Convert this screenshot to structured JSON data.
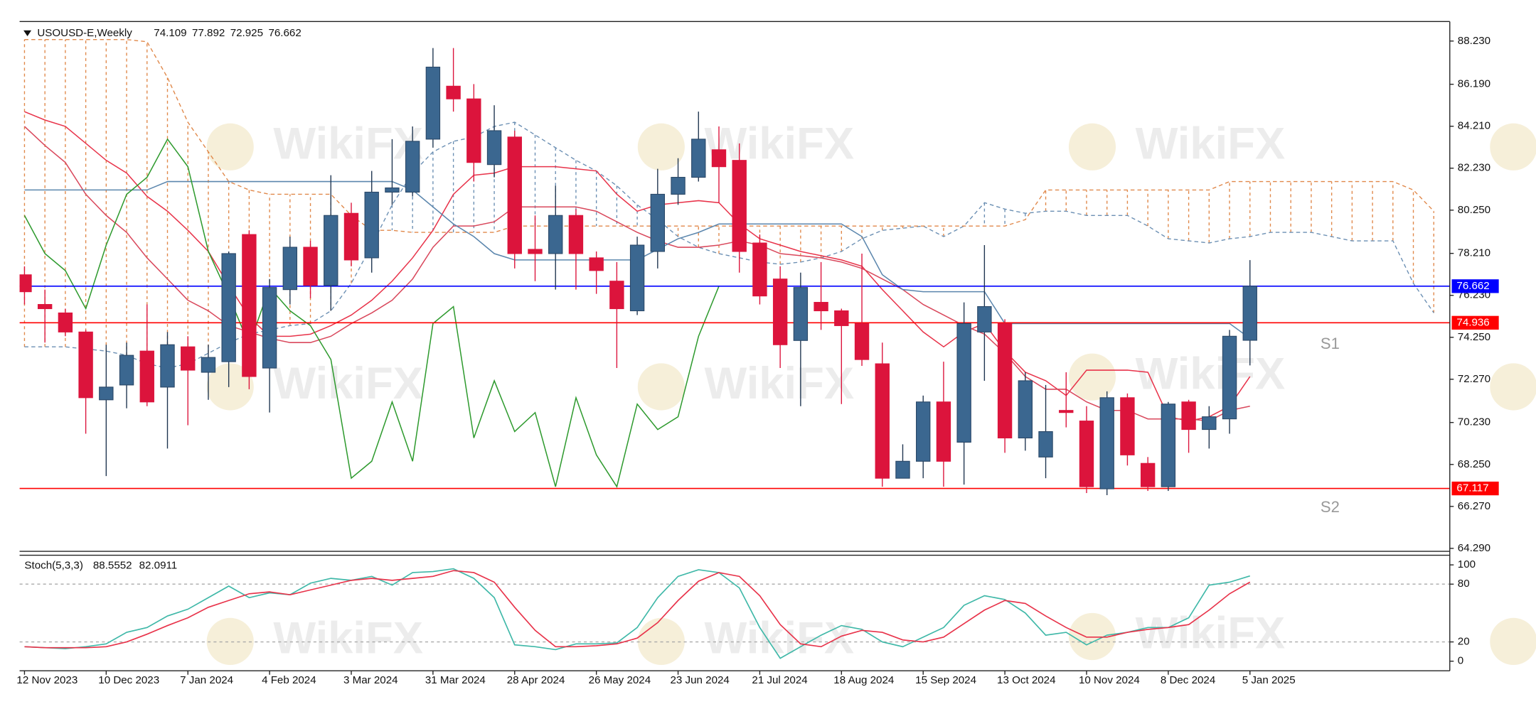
{
  "chart_data": [
    {
      "type": "candlestick",
      "title": "USOUSD-E,Weekly",
      "categories": [
        "12 Nov 2023",
        null,
        null,
        null,
        "10 Dec 2023",
        null,
        null,
        null,
        "7 Jan 2024",
        null,
        null,
        null,
        "4 Feb 2024",
        null,
        null,
        null,
        "3 Mar 2024",
        null,
        null,
        null,
        "31 Mar 2024",
        null,
        null,
        null,
        "28 Apr 2024",
        null,
        null,
        null,
        "26 May 2024",
        null,
        null,
        null,
        "23 Jun 2024",
        null,
        null,
        null,
        "21 Jul 2024",
        null,
        null,
        null,
        "18 Aug 2024",
        null,
        null,
        null,
        "15 Sep 2024",
        null,
        null,
        null,
        "13 Oct 2024",
        null,
        null,
        null,
        "10 Nov 2024",
        null,
        null,
        null,
        "8 Dec 2024",
        null,
        null,
        null,
        "5 Jan 2025",
        null,
        null,
        null,
        null,
        null,
        null,
        null,
        null,
        null
      ],
      "open": [
        77.2,
        75.8,
        75.4,
        74.5,
        71.3,
        72.0,
        73.6,
        71.9,
        73.8,
        72.6,
        73.1,
        79.1,
        72.8,
        76.5,
        78.5,
        76.7,
        80.1,
        78.0,
        81.1,
        81.1,
        83.6,
        86.1,
        85.5,
        82.4,
        83.7,
        78.4,
        78.2,
        80.0,
        78.0,
        76.9,
        75.5,
        78.3,
        81.0,
        81.8,
        83.1,
        82.6,
        78.7,
        77.0,
        74.1,
        75.9,
        75.5,
        74.9,
        73.0,
        67.6,
        68.4,
        71.2,
        69.3,
        74.5,
        74.9,
        69.5,
        68.6,
        70.8,
        70.3,
        67.1,
        71.4,
        68.3,
        67.2,
        71.2,
        69.9,
        70.4,
        74.109,
        null,
        null,
        null,
        null,
        null,
        null,
        null,
        null,
        null
      ],
      "high": [
        77.6,
        76.5,
        75.6,
        74.6,
        73.9,
        74.0,
        75.8,
        74.5,
        74.3,
        73.9,
        78.3,
        79.3,
        77.0,
        79.0,
        78.8,
        81.9,
        80.6,
        82.1,
        83.6,
        84.2,
        87.9,
        87.9,
        86.2,
        85.2,
        84.0,
        80.0,
        81.4,
        80.3,
        78.3,
        77.8,
        79.0,
        82.2,
        82.7,
        84.9,
        84.2,
        83.4,
        79.1,
        77.6,
        77.3,
        77.8,
        75.6,
        78.2,
        74.0,
        69.2,
        71.5,
        73.1,
        75.9,
        78.6,
        75.1,
        72.6,
        72.0,
        72.6,
        71.0,
        71.7,
        71.6,
        68.6,
        71.2,
        71.3,
        71.0,
        74.6,
        77.892,
        null,
        null,
        null,
        null,
        null,
        null,
        null,
        null,
        null
      ],
      "low": [
        75.8,
        74.0,
        74.3,
        69.7,
        67.7,
        70.9,
        71.0,
        69.0,
        70.1,
        71.3,
        71.9,
        71.8,
        70.7,
        75.8,
        76.1,
        75.5,
        77.6,
        77.3,
        80.5,
        80.9,
        83.2,
        84.9,
        81.6,
        81.8,
        77.5,
        76.9,
        76.5,
        76.5,
        76.3,
        72.8,
        75.3,
        77.5,
        80.5,
        81.6,
        80.6,
        77.3,
        75.8,
        72.8,
        71.0,
        74.6,
        71.1,
        72.9,
        67.2,
        67.6,
        67.6,
        67.2,
        67.3,
        72.2,
        68.8,
        68.9,
        67.6,
        70.0,
        66.9,
        66.8,
        68.2,
        67.0,
        67.0,
        68.8,
        69.0,
        69.7,
        72.925,
        null,
        null,
        null,
        null,
        null,
        null,
        null,
        null,
        null
      ],
      "close": [
        76.4,
        75.6,
        74.5,
        71.4,
        71.9,
        73.4,
        71.2,
        73.9,
        72.7,
        73.3,
        78.2,
        72.4,
        76.6,
        78.5,
        76.7,
        80.0,
        77.9,
        81.1,
        81.3,
        83.5,
        87.0,
        85.5,
        82.5,
        84.0,
        78.2,
        78.2,
        80.0,
        78.2,
        77.4,
        75.6,
        78.6,
        81.0,
        81.8,
        83.6,
        82.3,
        78.3,
        76.2,
        73.9,
        76.6,
        75.5,
        74.8,
        73.2,
        67.6,
        68.4,
        71.2,
        68.4,
        74.9,
        75.7,
        69.5,
        72.2,
        69.8,
        70.7,
        67.2,
        71.4,
        68.7,
        67.2,
        71.1,
        69.9,
        70.5,
        74.3,
        76.662,
        null,
        null,
        null,
        null,
        null,
        null,
        null,
        null,
        null
      ],
      "up_color": "#3b6790",
      "down_color": "#dc143c",
      "overlays": [
        {
          "color": "#e8334a",
          "values": [
            84.9,
            84.5,
            84.2,
            83.4,
            82.6,
            82.0,
            80.9,
            80.2,
            79.3,
            78.3,
            76.7,
            75.2,
            74.3,
            74.3,
            74.4,
            74.8,
            75.3,
            76.0,
            76.9,
            78.0,
            79.3,
            81.0,
            81.9,
            82.0,
            82.3,
            82.3,
            82.3,
            82.2,
            82.1,
            81.0,
            80.2,
            80.5,
            80.6,
            80.7,
            80.6,
            79.6,
            78.9,
            78.6,
            78.3,
            78.1,
            77.9,
            77.6,
            76.5,
            75.5,
            74.5,
            73.8,
            74.5,
            74.9,
            73.6,
            72.6,
            72.2,
            71.5,
            72.7,
            72.7,
            72.7,
            72.6,
            70.5,
            70.3,
            70.5,
            71.0,
            72.4,
            null,
            null,
            null,
            null,
            null,
            null,
            null,
            null,
            null
          ]
        },
        {
          "color": "#d9485c",
          "values": [
            84.2,
            83.3,
            82.5,
            81.0,
            80.0,
            79.2,
            78.0,
            77.0,
            76.0,
            75.5,
            74.8,
            74.5,
            74.2,
            74.0,
            74.0,
            74.3,
            74.9,
            75.4,
            76.0,
            77.0,
            78.5,
            79.5,
            79.5,
            79.7,
            80.4,
            80.4,
            80.4,
            80.4,
            80.2,
            79.7,
            79.2,
            78.8,
            78.5,
            78.5,
            78.6,
            78.8,
            78.6,
            78.2,
            78.1,
            78.0,
            77.8,
            77.5,
            77.0,
            76.5,
            75.8,
            75.3,
            74.8,
            74.4,
            73.5,
            72.4,
            71.8,
            71.8,
            71.2,
            70.8,
            70.8,
            70.4,
            70.4,
            70.4,
            70.3,
            70.8,
            71.0,
            null,
            null,
            null,
            null,
            null,
            null,
            null,
            null,
            null
          ]
        },
        {
          "color": "#5b86ad",
          "values": [
            81.2,
            81.2,
            81.2,
            81.2,
            81.2,
            81.2,
            81.2,
            81.6,
            81.6,
            81.6,
            81.6,
            81.6,
            81.6,
            81.6,
            81.6,
            81.6,
            81.6,
            81.6,
            81.6,
            81.2,
            80.4,
            79.6,
            79.0,
            78.2,
            77.9,
            77.9,
            77.9,
            77.9,
            77.9,
            77.9,
            77.9,
            78.4,
            78.9,
            79.2,
            79.6,
            79.6,
            79.6,
            79.6,
            79.6,
            79.6,
            79.6,
            79.0,
            77.2,
            76.5,
            76.4,
            76.4,
            76.4,
            76.4,
            74.9,
            74.9,
            74.9,
            74.9,
            74.9,
            74.9,
            74.9,
            74.9,
            74.9,
            74.9,
            74.9,
            74.9,
            74.2,
            null,
            null,
            null,
            null,
            null,
            null,
            null,
            null,
            null
          ]
        },
        {
          "color": "#2e9a2e",
          "values": [
            80.0,
            78.2,
            77.4,
            75.6,
            78.6,
            81.0,
            81.8,
            83.6,
            82.3,
            78.3,
            76.2,
            73.9,
            76.6,
            75.5,
            74.8,
            73.2,
            67.6,
            68.4,
            71.2,
            68.4,
            74.9,
            75.7,
            69.5,
            72.2,
            69.8,
            70.7,
            67.2,
            71.4,
            68.7,
            67.2,
            71.1,
            69.9,
            70.5,
            74.3,
            76.662,
            null,
            null,
            null,
            null,
            null,
            null,
            null,
            null,
            null,
            null,
            null,
            null,
            null,
            null,
            null,
            null,
            null,
            null,
            null,
            null,
            null,
            null,
            null,
            null,
            null,
            null,
            null,
            null,
            null,
            null,
            null,
            null,
            null,
            null,
            null
          ]
        }
      ],
      "cloud": [
        {
          "color": "#6b8fb3",
          "values": [
            73.8,
            73.8,
            73.8,
            73.7,
            73.6,
            73.4,
            73.0,
            72.8,
            73.0,
            73.5,
            74.0,
            74.4,
            74.6,
            74.8,
            74.9,
            75.5,
            76.8,
            78.6,
            80.5,
            82.0,
            83.0,
            83.5,
            83.7,
            84.2,
            84.4,
            83.8,
            83.2,
            82.6,
            82.1,
            81.4,
            80.5,
            79.8,
            79.0,
            78.5,
            78.2,
            78.0,
            77.8,
            77.7,
            77.8,
            78.0,
            78.3,
            78.9,
            79.3,
            79.4,
            79.5,
            79.0,
            79.5,
            80.6,
            80.3,
            80.1,
            80.2,
            80.2,
            80.0,
            80.0,
            80.0,
            79.5,
            78.9,
            78.8,
            78.7,
            78.9,
            79.0,
            79.2,
            79.2,
            79.2,
            79.0,
            78.8,
            78.8,
            78.8,
            76.8,
            75.4
          ]
        },
        {
          "color": "#e0884a",
          "values": [
            88.3,
            88.3,
            88.3,
            88.3,
            88.3,
            88.3,
            88.2,
            86.5,
            84.4,
            83.0,
            81.6,
            81.2,
            81.0,
            81.0,
            81.0,
            81.0,
            80.0,
            79.3,
            79.3,
            79.2,
            79.2,
            79.2,
            79.2,
            79.2,
            79.5,
            79.5,
            79.5,
            79.5,
            79.5,
            79.5,
            79.5,
            79.5,
            79.5,
            79.5,
            79.5,
            79.5,
            79.5,
            79.5,
            79.5,
            79.5,
            79.5,
            79.5,
            79.5,
            79.5,
            79.5,
            79.5,
            79.5,
            79.5,
            79.5,
            79.8,
            81.2,
            81.2,
            81.2,
            81.2,
            81.2,
            81.2,
            81.2,
            81.2,
            81.2,
            81.6,
            81.6,
            81.6,
            81.6,
            81.6,
            81.6,
            81.6,
            81.6,
            81.6,
            81.2,
            80.2
          ]
        }
      ],
      "levels": [
        {
          "value": 76.662,
          "color": "#0000ff"
        },
        {
          "value": 74.936,
          "color": "#ff0000"
        },
        {
          "value": 67.117,
          "color": "#ff0000"
        }
      ],
      "annotations": [
        "S1",
        "S2"
      ],
      "watermark": "WikiFX",
      "ylim": [
        64.15,
        89.15
      ],
      "yticks": [
        {
          "value": 88.23,
          "label": "88.230"
        },
        {
          "value": 86.19,
          "label": "86.190"
        },
        {
          "value": 84.21,
          "label": "84.210"
        },
        {
          "value": 82.23,
          "label": "82.230"
        },
        {
          "value": 80.25,
          "label": "80.250"
        },
        {
          "value": 78.21,
          "label": "78.210"
        },
        {
          "value": 76.23,
          "label": "76.230"
        },
        {
          "value": 74.25,
          "label": "74.250"
        },
        {
          "value": 72.27,
          "label": "72.270"
        },
        {
          "value": 70.23,
          "label": "70.230"
        },
        {
          "value": 68.25,
          "label": "68.250"
        },
        {
          "value": 66.27,
          "label": "66.270"
        },
        {
          "value": 64.29,
          "label": "64.290"
        }
      ]
    },
    {
      "type": "line",
      "title": "Stoch(5,3,3)",
      "series": [
        {
          "color": "#3fb8a8",
          "values": [
            15,
            14,
            13,
            15,
            18,
            30,
            35,
            47,
            54,
            66,
            78,
            66,
            71,
            69,
            81,
            86,
            84,
            88,
            79,
            92,
            93,
            96,
            86,
            66,
            17,
            15,
            12,
            18,
            18,
            19,
            35,
            66,
            88,
            95,
            92,
            76,
            35,
            3,
            15,
            27,
            37,
            33,
            20,
            15,
            25,
            35,
            58,
            68,
            64,
            50,
            27,
            30,
            17,
            27,
            30,
            35,
            35,
            45,
            79,
            82,
            88.5552
          ]
        },
        {
          "color": "#e8334a",
          "values": [
            15,
            14,
            14,
            14,
            15,
            20,
            28,
            37,
            45,
            56,
            63,
            70,
            72,
            69,
            74,
            79,
            84,
            86,
            84,
            86,
            88,
            94,
            92,
            82,
            56,
            32,
            15,
            15,
            16,
            18,
            24,
            40,
            63,
            83,
            92,
            88,
            68,
            38,
            18,
            15,
            26,
            32,
            30,
            22,
            20,
            25,
            39,
            53,
            63,
            60,
            47,
            35,
            25,
            25,
            30,
            33,
            35,
            38,
            53,
            70,
            82.0911
          ]
        }
      ],
      "levels": [
        80,
        20
      ],
      "ylim": [
        -10,
        110
      ],
      "yticks": [
        100,
        80,
        20,
        0
      ]
    }
  ]
}
